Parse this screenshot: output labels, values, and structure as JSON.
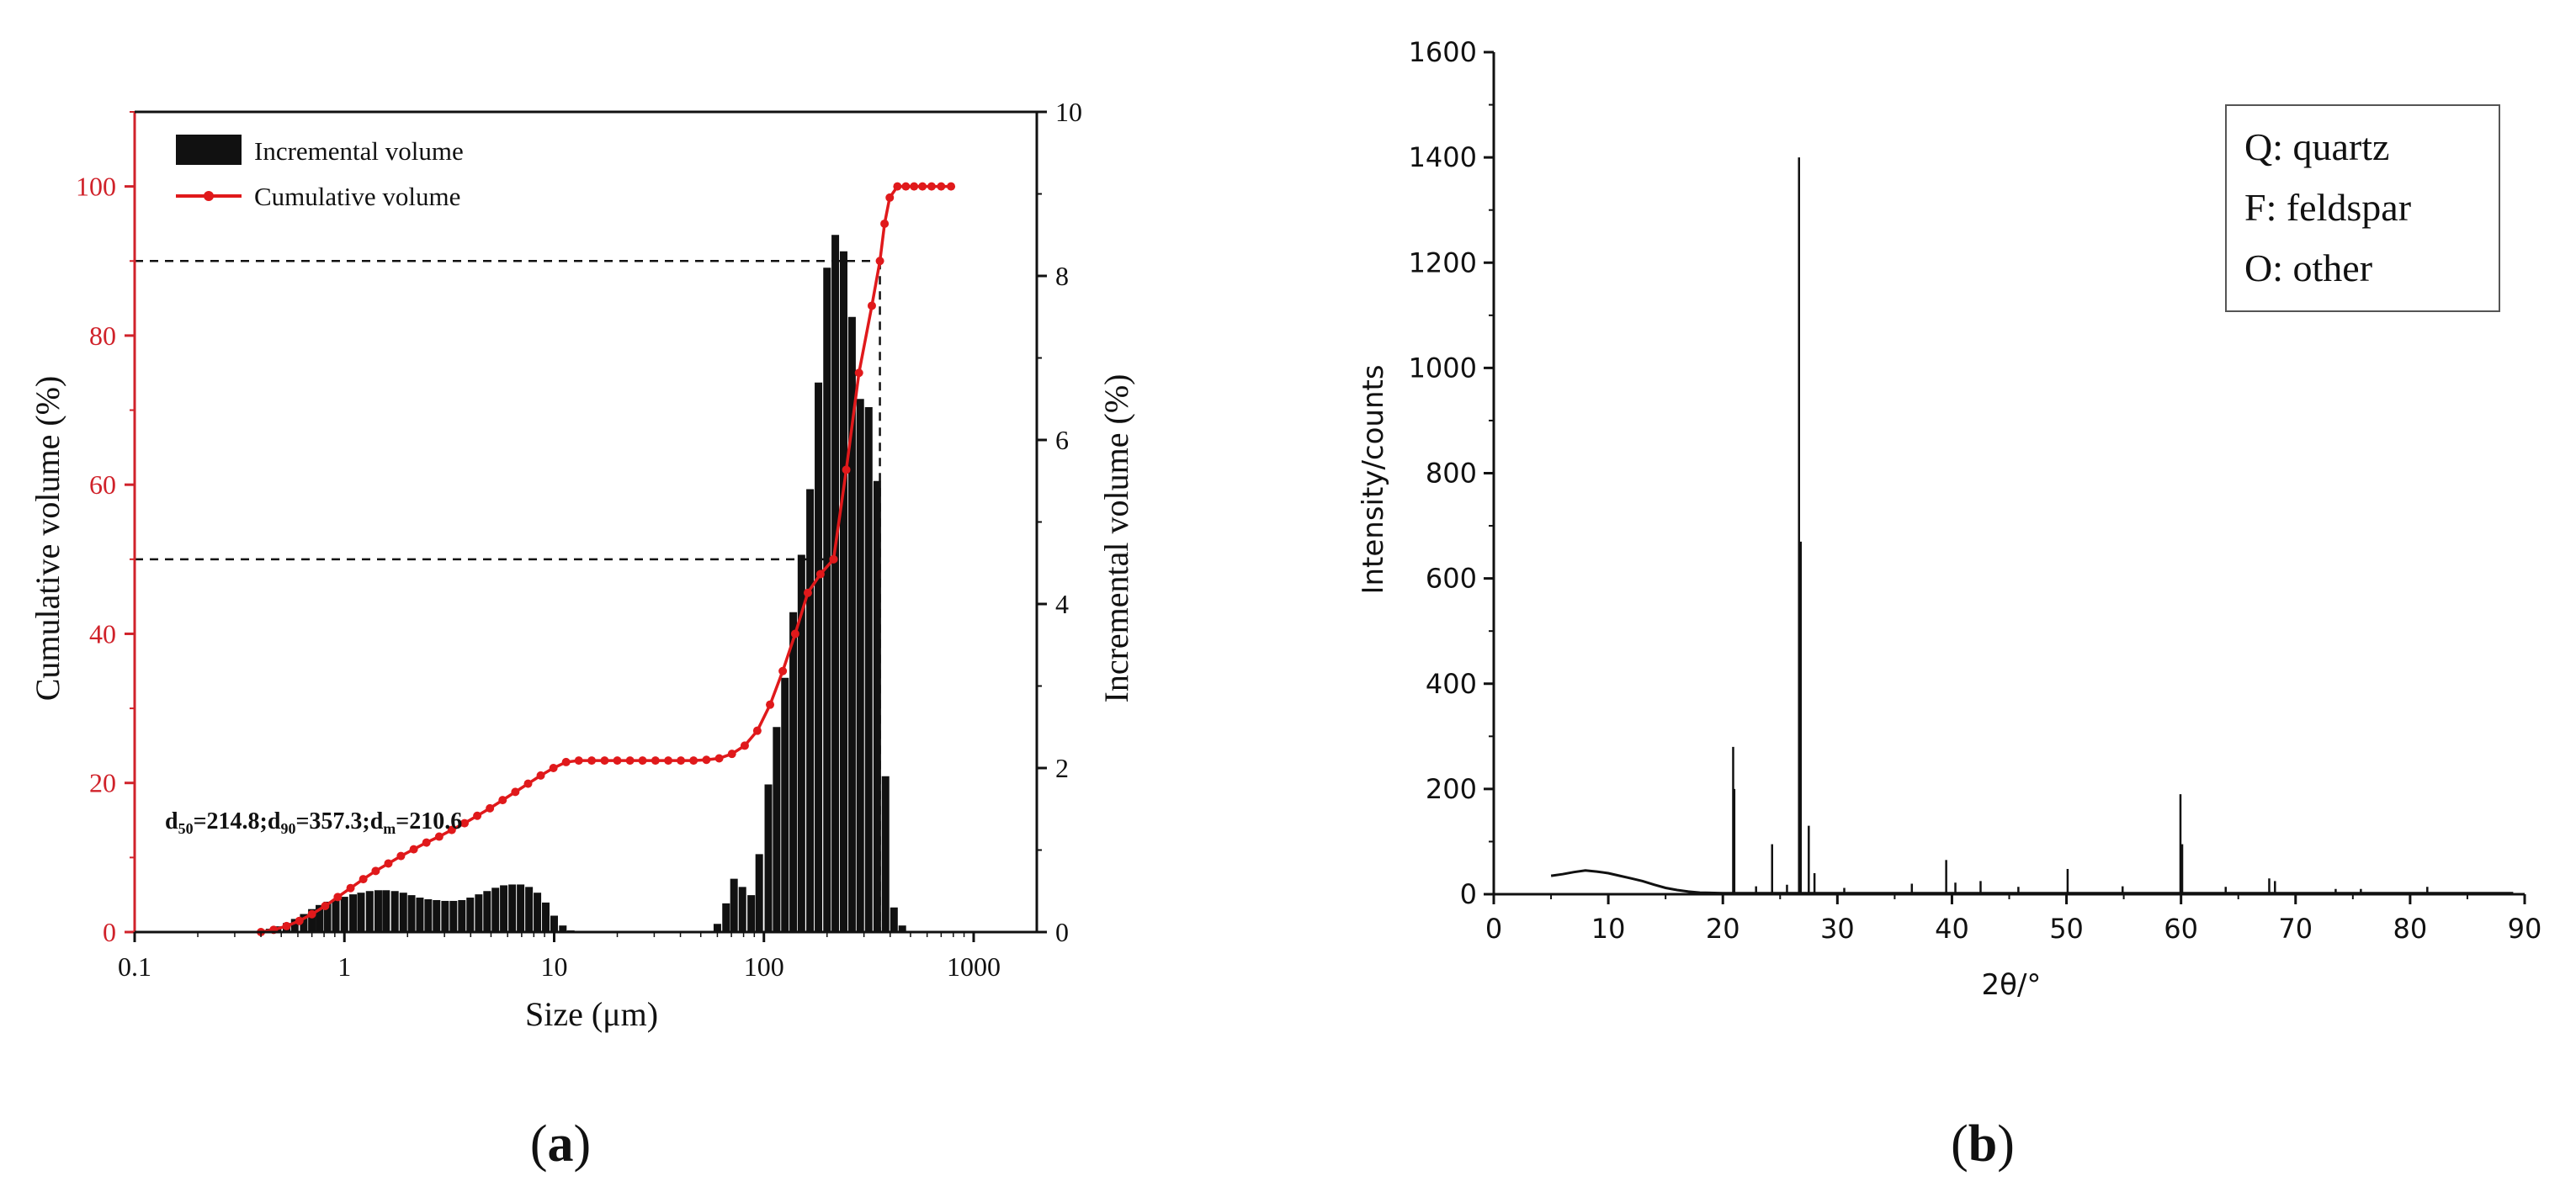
{
  "panels": {
    "a": {
      "label_open": "(",
      "label_letter": "a",
      "label_close": ")"
    },
    "b": {
      "label_open": "(",
      "label_letter": "b",
      "label_close": ")"
    }
  },
  "colors": {
    "cumulative": "#e0191b",
    "axis_left": "#d0222a",
    "bars": "#111111",
    "xrd": "#111111"
  },
  "chart_data": [
    {
      "id": "a",
      "type": "bar+line",
      "title": "",
      "xlabel": "Size (μm)",
      "xscale": "log",
      "xlim": [
        0.1,
        2000
      ],
      "xticks": [
        0.1,
        1,
        10,
        100,
        1000
      ],
      "xtick_labels": [
        "0.1",
        "1",
        "10",
        "100",
        "1000"
      ],
      "ylabel_left": "Cumulative volume (%)",
      "ylim_left": [
        0,
        110
      ],
      "yticks_left": [
        0,
        20,
        40,
        60,
        80,
        100
      ],
      "ylabel_right": "Incremental volume (%)",
      "ylim_right": [
        0,
        10
      ],
      "yticks_right": [
        0,
        2,
        4,
        6,
        8,
        10
      ],
      "annotation": {
        "d50_label": "d",
        "d50_sub": "50",
        "d50_val": "=214.8;",
        "d90_label": "d",
        "d90_sub": "90",
        "d90_val": "=357.3;",
        "dm_label": "d",
        "dm_sub": "m",
        "dm_val": "=210.6"
      },
      "guides": [
        {
          "y": 50,
          "x_end": 214.8
        },
        {
          "y": 90,
          "x_end": 357.3
        }
      ],
      "legend": [
        {
          "label": "Incremental volume",
          "kind": "bar"
        },
        {
          "label": "Cumulative volume",
          "kind": "line"
        }
      ],
      "series": [
        {
          "name": "Incremental volume",
          "axis": "right",
          "x": [
            0.4,
            0.44,
            0.48,
            0.53,
            0.58,
            0.64,
            0.7,
            0.76,
            0.83,
            0.91,
            1.0,
            1.1,
            1.2,
            1.32,
            1.45,
            1.58,
            1.74,
            1.91,
            2.09,
            2.29,
            2.51,
            2.75,
            3.02,
            3.31,
            3.63,
            3.98,
            4.37,
            4.79,
            5.25,
            5.75,
            6.31,
            6.92,
            7.59,
            8.32,
            9.12,
            10.0,
            11.0,
            12.0,
            60,
            66,
            72,
            79,
            87,
            95,
            105,
            115,
            126,
            138,
            151,
            166,
            182,
            200,
            219,
            240,
            263,
            288,
            316,
            347,
            380,
            417,
            457
          ],
          "values": [
            0.02,
            0.04,
            0.07,
            0.11,
            0.16,
            0.22,
            0.28,
            0.33,
            0.37,
            0.4,
            0.43,
            0.46,
            0.48,
            0.5,
            0.51,
            0.51,
            0.5,
            0.48,
            0.45,
            0.42,
            0.4,
            0.39,
            0.38,
            0.38,
            0.39,
            0.42,
            0.46,
            0.5,
            0.54,
            0.57,
            0.58,
            0.58,
            0.55,
            0.48,
            0.36,
            0.2,
            0.08,
            0.02,
            0.1,
            0.35,
            0.65,
            0.55,
            0.45,
            0.95,
            1.8,
            2.5,
            3.1,
            3.9,
            4.6,
            5.4,
            6.7,
            8.1,
            8.5,
            8.3,
            7.5,
            6.5,
            6.4,
            5.5,
            1.9,
            0.3,
            0.08
          ]
        },
        {
          "name": "Cumulative volume",
          "axis": "left",
          "x": [
            0.4,
            0.46,
            0.53,
            0.61,
            0.7,
            0.81,
            0.93,
            1.07,
            1.23,
            1.41,
            1.62,
            1.86,
            2.14,
            2.46,
            2.83,
            3.25,
            3.74,
            4.3,
            4.94,
            5.68,
            6.53,
            7.51,
            8.63,
            9.92,
            11.4,
            13.1,
            15.1,
            17.4,
            20,
            23,
            26.4,
            30.4,
            35,
            40.2,
            46.2,
            53.2,
            61.2,
            70.4,
            81,
            93,
            107,
            123,
            141,
            162,
            186,
            214.8,
            247,
            284,
            327,
            357.3,
            376,
            398,
            433,
            475,
            520,
            570,
            630,
            700,
            780
          ],
          "values": [
            0,
            0.3,
            0.8,
            1.5,
            2.4,
            3.5,
            4.7,
            5.9,
            7.1,
            8.2,
            9.2,
            10.2,
            11.1,
            12.0,
            12.8,
            13.7,
            14.6,
            15.6,
            16.6,
            17.7,
            18.8,
            19.9,
            21.0,
            22.0,
            22.8,
            23.0,
            23.0,
            23.0,
            23.0,
            23.0,
            23.0,
            23.0,
            23.0,
            23.0,
            23.0,
            23.1,
            23.3,
            23.9,
            25.0,
            27.0,
            30.5,
            35.0,
            40.0,
            45.5,
            48.0,
            50.0,
            62.0,
            75.0,
            84.0,
            90.0,
            95.0,
            98.5,
            100,
            100,
            100,
            100,
            100,
            100,
            100
          ]
        }
      ]
    },
    {
      "id": "b",
      "type": "line",
      "title": "",
      "xlabel": "2θ/°",
      "ylabel": "Intensity/counts",
      "xlim": [
        0,
        90
      ],
      "ylim": [
        0,
        1600
      ],
      "xticks": [
        0,
        10,
        20,
        30,
        40,
        50,
        60,
        70,
        80,
        90
      ],
      "yticks": [
        0,
        200,
        400,
        600,
        800,
        1000,
        1200,
        1400,
        1600
      ],
      "legend_box": [
        "Q: quartz",
        "F: feldspar",
        "O: other"
      ],
      "baseline": {
        "x": [
          5,
          6,
          7,
          8,
          9,
          10,
          11,
          12,
          13,
          14,
          15,
          16,
          17,
          18,
          20,
          25,
          30,
          40,
          50,
          60,
          70,
          80,
          89
        ],
        "values": [
          35,
          38,
          42,
          45,
          43,
          40,
          35,
          30,
          25,
          18,
          12,
          8,
          5,
          3,
          2,
          2,
          2,
          2,
          2,
          2,
          2,
          2,
          2
        ]
      },
      "peaks": [
        {
          "x": 20.9,
          "value": 280
        },
        {
          "x": 21.0,
          "value": 200
        },
        {
          "x": 22.9,
          "value": 15
        },
        {
          "x": 24.3,
          "value": 95
        },
        {
          "x": 25.6,
          "value": 18
        },
        {
          "x": 26.65,
          "value": 1400
        },
        {
          "x": 26.8,
          "value": 670
        },
        {
          "x": 27.5,
          "value": 130
        },
        {
          "x": 28.0,
          "value": 40
        },
        {
          "x": 30.6,
          "value": 12
        },
        {
          "x": 36.5,
          "value": 20
        },
        {
          "x": 39.5,
          "value": 65
        },
        {
          "x": 40.3,
          "value": 22
        },
        {
          "x": 42.5,
          "value": 25
        },
        {
          "x": 45.8,
          "value": 14
        },
        {
          "x": 50.1,
          "value": 48
        },
        {
          "x": 54.9,
          "value": 15
        },
        {
          "x": 59.95,
          "value": 190
        },
        {
          "x": 60.1,
          "value": 95
        },
        {
          "x": 63.9,
          "value": 14
        },
        {
          "x": 67.7,
          "value": 30
        },
        {
          "x": 68.2,
          "value": 25
        },
        {
          "x": 73.5,
          "value": 10
        },
        {
          "x": 75.7,
          "value": 10
        },
        {
          "x": 81.5,
          "value": 14
        }
      ]
    }
  ]
}
